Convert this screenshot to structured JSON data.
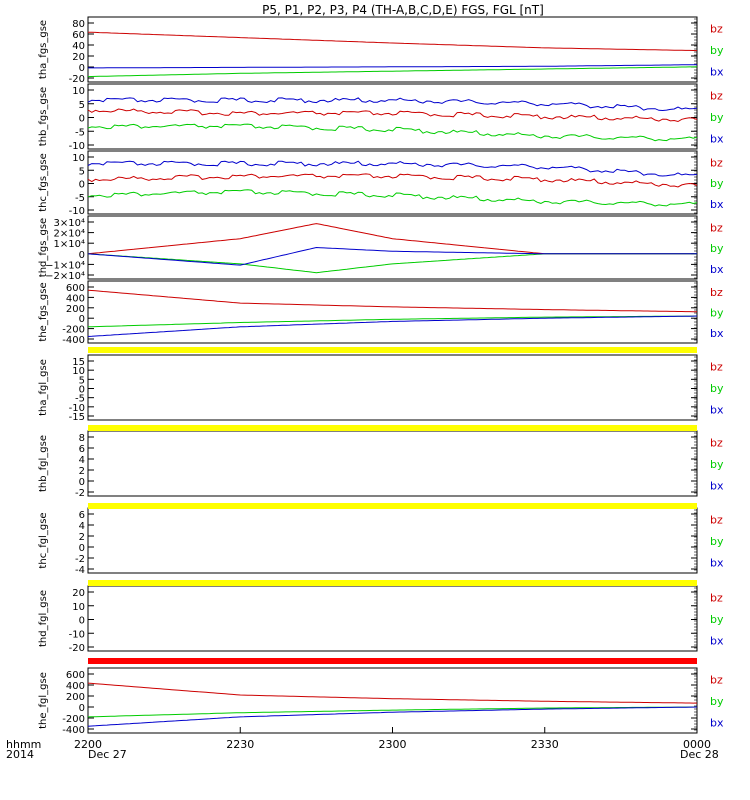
{
  "title": "P5, P1, P2, P3, P4 (TH-A,B,C,D,E) FGS, FGL [nT]",
  "colors": {
    "bx": "#0000cc",
    "by": "#00cc00",
    "bz": "#cc0000",
    "flag_yellow": "#ffff00",
    "flag_red": "#ff0000",
    "axis": "#000000"
  },
  "time_axis": {
    "ticks": [
      "2200",
      "2230",
      "2300",
      "2330",
      "0000"
    ],
    "row_label": "hhmm",
    "year_label": "2014",
    "start_date": "Dec 27",
    "end_date": "Dec 28",
    "range": [
      2200,
      2400
    ]
  },
  "chart_data": [
    {
      "type": "line",
      "ylabel": "tha_fgs_gse",
      "ylim": [
        -30,
        90
      ],
      "yticks": [
        "80",
        "60",
        "40",
        "20",
        "0",
        "-20"
      ],
      "series": [
        {
          "name": "bz",
          "x": [
            0,
            30,
            60,
            90,
            120
          ],
          "values": [
            62,
            52,
            42,
            33,
            28
          ]
        },
        {
          "name": "by",
          "x": [
            0,
            30,
            60,
            90,
            120
          ],
          "values": [
            -20,
            -14,
            -10,
            -6,
            -2
          ]
        },
        {
          "name": "bx",
          "x": [
            0,
            30,
            60,
            90,
            120
          ],
          "values": [
            -4,
            -3,
            -2,
            -1,
            2
          ]
        }
      ]
    },
    {
      "type": "line",
      "ylabel": "thb_fgs_gse",
      "ylim": [
        -10,
        10
      ],
      "yticks": [
        "10",
        "5",
        "0",
        "-5",
        "-10"
      ],
      "series": [
        {
          "name": "bz",
          "x": [
            0,
            30,
            60,
            90,
            120
          ],
          "values": [
            2,
            1,
            1,
            0,
            -1
          ]
        },
        {
          "name": "by",
          "x": [
            0,
            30,
            60,
            90,
            120
          ],
          "values": [
            -3,
            -3,
            -4,
            -6,
            -7
          ]
        },
        {
          "name": "bx",
          "x": [
            0,
            30,
            60,
            90,
            120
          ],
          "values": [
            5,
            5,
            5,
            4,
            2
          ]
        }
      ]
    },
    {
      "type": "line",
      "ylabel": "thc_fgs_gse",
      "ylim": [
        -10,
        10
      ],
      "yticks": [
        "10",
        "5",
        "0",
        "-5",
        "-10"
      ],
      "series": [
        {
          "name": "bz",
          "x": [
            0,
            30,
            60,
            90,
            120
          ],
          "values": [
            1,
            2,
            2,
            1,
            -1
          ]
        },
        {
          "name": "by",
          "x": [
            0,
            30,
            60,
            90,
            120
          ],
          "values": [
            -4,
            -3,
            -4,
            -6,
            -7
          ]
        },
        {
          "name": "bx",
          "x": [
            0,
            30,
            60,
            90,
            120
          ],
          "values": [
            6,
            6,
            6,
            5,
            2
          ]
        }
      ]
    },
    {
      "type": "line",
      "ylabel": "thd_fgs_gse",
      "ylim": [
        -20000,
        30000
      ],
      "yticks": [
        "3×10⁴",
        "2×10⁴",
        "1×10⁴",
        "0",
        "−1×10⁴",
        "−2×10⁴"
      ],
      "series": [
        {
          "name": "bz",
          "x": [
            0,
            30,
            45,
            60,
            90,
            120
          ],
          "values": [
            0,
            12000,
            24000,
            12000,
            0,
            0
          ]
        },
        {
          "name": "by",
          "x": [
            0,
            30,
            45,
            60,
            90,
            120
          ],
          "values": [
            0,
            -8000,
            -15000,
            -8000,
            0,
            0
          ]
        },
        {
          "name": "bx",
          "x": [
            0,
            30,
            45,
            60,
            90,
            120
          ],
          "values": [
            0,
            -9000,
            5000,
            2000,
            0,
            0
          ]
        }
      ]
    },
    {
      "type": "line",
      "ylabel": "the_fgs_gse",
      "ylim": [
        -500,
        650
      ],
      "yticks": [
        "600",
        "400",
        "200",
        "0",
        "-200",
        "-400"
      ],
      "series": [
        {
          "name": "bz",
          "x": [
            0,
            30,
            60,
            90,
            120
          ],
          "values": [
            480,
            240,
            170,
            120,
            80
          ]
        },
        {
          "name": "by",
          "x": [
            0,
            30,
            60,
            90,
            120
          ],
          "values": [
            -200,
            -120,
            -60,
            -20,
            0
          ]
        },
        {
          "name": "bx",
          "x": [
            0,
            30,
            60,
            90,
            120
          ],
          "values": [
            -380,
            -200,
            -100,
            -40,
            0
          ]
        }
      ]
    },
    {
      "type": "line",
      "ylabel": "tha_fgl_gse",
      "ylim": [
        -17,
        17
      ],
      "yticks": [
        "15",
        "10",
        "5",
        "0",
        "-5",
        "-10",
        "-15"
      ],
      "series": []
    },
    {
      "type": "line",
      "ylabel": "thb_fgl_gse",
      "ylim": [
        -3,
        9
      ],
      "yticks": [
        "8",
        "6",
        "4",
        "2",
        "0",
        "-2"
      ],
      "series": []
    },
    {
      "type": "line",
      "ylabel": "thc_fgl_gse",
      "ylim": [
        -5,
        7
      ],
      "yticks": [
        "6",
        "4",
        "2",
        "0",
        "-2",
        "-4"
      ],
      "series": []
    },
    {
      "type": "line",
      "ylabel": "thd_fgl_gse",
      "ylim": [
        -25,
        25
      ],
      "yticks": [
        "20",
        "10",
        "0",
        "-10",
        "-20"
      ],
      "series": []
    },
    {
      "type": "line",
      "ylabel": "the_fgl_gse",
      "ylim": [
        -500,
        750
      ],
      "yticks": [
        "600",
        "400",
        "200",
        "0",
        "-200",
        "-400"
      ],
      "series": [
        {
          "name": "bz",
          "x": [
            0,
            30,
            60,
            90,
            120
          ],
          "values": [
            460,
            230,
            160,
            110,
            75
          ]
        },
        {
          "name": "by",
          "x": [
            0,
            30,
            60,
            90,
            120
          ],
          "values": [
            -190,
            -110,
            -60,
            -20,
            0
          ]
        },
        {
          "name": "bx",
          "x": [
            0,
            30,
            60,
            90,
            120
          ],
          "values": [
            -370,
            -190,
            -100,
            -40,
            0
          ]
        }
      ]
    }
  ],
  "flags": [
    {
      "after_panel": 4,
      "color": "yellow"
    },
    {
      "after_panel": 5,
      "color": "yellow"
    },
    {
      "after_panel": 6,
      "color": "yellow"
    },
    {
      "after_panel": 7,
      "color": "yellow"
    },
    {
      "after_panel": 8,
      "color": "red"
    }
  ],
  "legend": [
    "bz",
    "by",
    "bx"
  ]
}
